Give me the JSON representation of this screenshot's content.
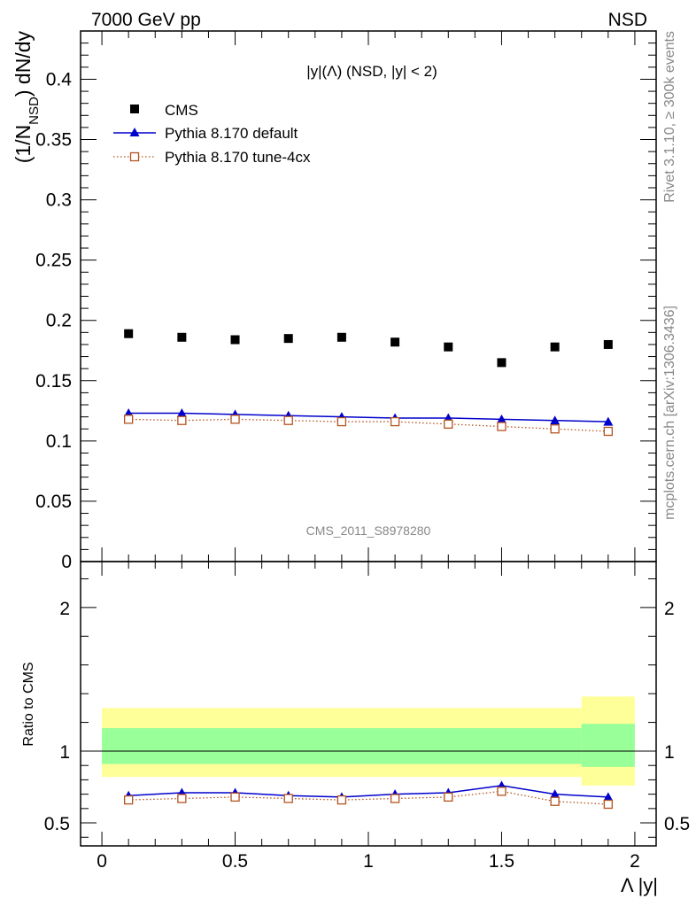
{
  "header": {
    "left": "7000 GeV pp",
    "right": "NSD",
    "rivet": "Rivet 3.1.10, ≥ 300k events",
    "mcplots": "mcplots.cern.ch [arXiv:1306.3436]",
    "analysis": "CMS_2011_S8978280"
  },
  "chart_data": [
    {
      "type": "scatter",
      "title": "|y|(Λ) (NSD, |y| < 2)",
      "ylabel": "(1/N_NSD) dN/dy",
      "ylabel_parts": {
        "pre": "(1/N",
        "sub": "NSD",
        "post": ") dN/dy"
      },
      "xlabel": "",
      "xlim": [
        -0.08,
        2.08
      ],
      "ylim": [
        0,
        0.44
      ],
      "yticks": [
        0,
        0.05,
        0.1,
        0.15,
        0.2,
        0.25,
        0.3,
        0.35,
        0.4
      ],
      "ytick_labels": [
        "0",
        "0.05",
        "0.1",
        "0.15",
        "0.2",
        "0.25",
        "0.3",
        "0.35",
        "0.4"
      ],
      "x": [
        0.1,
        0.3,
        0.5,
        0.7,
        0.9,
        1.1,
        1.3,
        1.5,
        1.7,
        1.9
      ],
      "series": [
        {
          "name": "CMS",
          "marker": "filled-square",
          "color": "#000000",
          "values": [
            0.189,
            0.186,
            0.184,
            0.185,
            0.186,
            0.182,
            0.178,
            0.165,
            0.178,
            0.18
          ]
        },
        {
          "name": "Pythia 8.170 default",
          "marker": "filled-triangle",
          "line": "solid",
          "color": "#0000cc",
          "values": [
            0.123,
            0.123,
            0.122,
            0.121,
            0.12,
            0.119,
            0.119,
            0.118,
            0.117,
            0.116
          ]
        },
        {
          "name": "Pythia 8.170 tune-4cx",
          "marker": "open-square",
          "line": "dotted",
          "color": "#b5531f",
          "values": [
            0.118,
            0.117,
            0.118,
            0.117,
            0.116,
            0.116,
            0.114,
            0.112,
            0.11,
            0.108
          ]
        }
      ],
      "legend": "top-left"
    },
    {
      "type": "line",
      "ylabel": "Ratio to CMS",
      "xlabel": "Λ |y|",
      "xlim": [
        -0.08,
        2.08
      ],
      "ylim": [
        0.34,
        2.32
      ],
      "yticks": [
        0.5,
        1,
        2
      ],
      "ytick_labels": [
        "0.5",
        "1",
        "2"
      ],
      "xticks": [
        0,
        0.5,
        1,
        1.5,
        2
      ],
      "xtick_labels": [
        "0",
        "0.5",
        "1",
        "1.5",
        "2"
      ],
      "reference_line": 1,
      "bands": [
        {
          "name": "stat",
          "color": "#99ff99",
          "segments": [
            {
              "x": [
                0,
                1.8
              ],
              "y": [
                0.91,
                1.16
              ]
            },
            {
              "x": [
                1.8,
                2.0
              ],
              "y": [
                0.89,
                1.19
              ]
            }
          ]
        },
        {
          "name": "total",
          "color": "#ffff99",
          "segments": [
            {
              "x": [
                0,
                1.8
              ],
              "y": [
                0.82,
                1.3
              ]
            },
            {
              "x": [
                1.8,
                2.0
              ],
              "y": [
                0.76,
                1.38
              ]
            }
          ]
        }
      ],
      "x": [
        0.1,
        0.3,
        0.5,
        0.7,
        0.9,
        1.1,
        1.3,
        1.5,
        1.7,
        1.9
      ],
      "series": [
        {
          "name": "Pythia 8.170 default",
          "marker": "filled-triangle",
          "line": "solid",
          "color": "#0000cc",
          "values": [
            0.69,
            0.71,
            0.71,
            0.69,
            0.68,
            0.7,
            0.71,
            0.76,
            0.7,
            0.68
          ]
        },
        {
          "name": "Pythia 8.170 tune-4cx",
          "marker": "open-square",
          "line": "dotted",
          "color": "#b5531f",
          "values": [
            0.66,
            0.67,
            0.68,
            0.67,
            0.66,
            0.67,
            0.68,
            0.72,
            0.65,
            0.63
          ]
        }
      ]
    }
  ]
}
